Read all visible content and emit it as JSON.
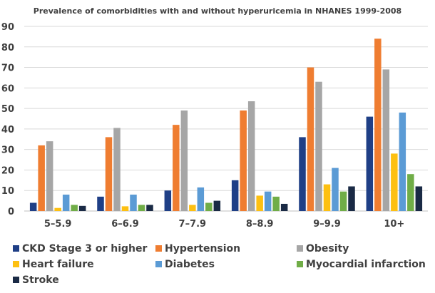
{
  "chart_data": {
    "type": "bar",
    "title": "Prevalence of comorbidities with and without hyperuricemia in NHANES 1999-2008",
    "categories": [
      "5–5.9",
      "6–6.9",
      "7–7.9",
      "8–8.9",
      "9–9.9",
      "10+"
    ],
    "ylim": [
      0,
      90
    ],
    "yticks": [
      0,
      10,
      20,
      30,
      40,
      50,
      60,
      70,
      80,
      90
    ],
    "grid": true,
    "legend_position": "bottom",
    "series": [
      {
        "name": "CKD Stage 3 or higher",
        "color": "#1f3f86",
        "values": [
          4,
          7,
          10,
          15,
          36,
          46
        ]
      },
      {
        "name": "Hypertension",
        "color": "#ef7d31",
        "values": [
          32,
          36,
          42,
          49,
          70,
          84
        ]
      },
      {
        "name": "Obesity",
        "color": "#a6a6a6",
        "values": [
          34,
          40.5,
          49,
          53.5,
          63,
          69
        ]
      },
      {
        "name": "Heart failure",
        "color": "#fdc012",
        "values": [
          1.5,
          2.3,
          3,
          7.5,
          13,
          28
        ]
      },
      {
        "name": "Diabetes",
        "color": "#5b9bd5",
        "values": [
          8,
          8,
          11.5,
          9.5,
          21,
          48
        ]
      },
      {
        "name": "Myocardial infarction",
        "color": "#70ad47",
        "values": [
          3,
          3,
          4,
          7,
          9.5,
          18
        ]
      },
      {
        "name": "Stroke",
        "color": "#1a2a45",
        "values": [
          2.5,
          3,
          5,
          3.5,
          12,
          12
        ]
      }
    ]
  }
}
